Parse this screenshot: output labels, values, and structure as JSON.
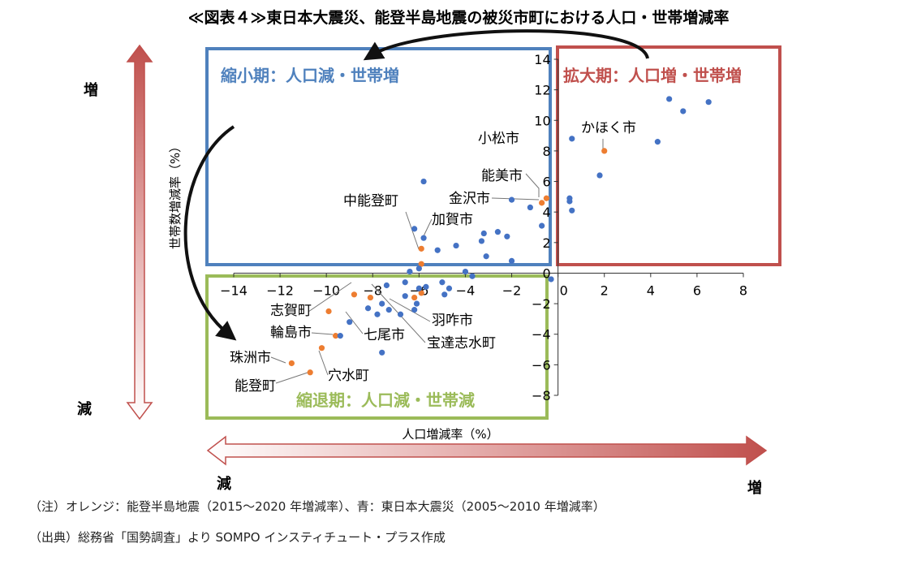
{
  "chart_data": {
    "type": "scatter",
    "title": "≪図表４≫東日本大震災、能登半島地震の被災市町における人口・世帯増減率",
    "xlabel": "人口増減率（%）",
    "ylabel": "世帯数増減率（%）",
    "xlim": [
      -14,
      8
    ],
    "ylim": [
      -8,
      14
    ],
    "x_ticks": [
      "−14",
      "−12",
      "−10",
      "−8",
      "−6",
      "−4",
      "−2",
      "0",
      "2",
      "4",
      "6",
      "8"
    ],
    "y_ticks": [
      "−8",
      "−6",
      "−4",
      "−2",
      "0",
      "2",
      "4",
      "6",
      "8",
      "10",
      "12",
      "14"
    ],
    "grid": false,
    "series": [
      {
        "color": "#ed7d31",
        "points": [
          {
            "x": 2.0,
            "y": 8.0
          },
          {
            "x": -0.7,
            "y": 4.6
          },
          {
            "x": -0.5,
            "y": 4.9
          },
          {
            "x": -5.9,
            "y": 1.6
          },
          {
            "x": -5.9,
            "y": 0.6
          },
          {
            "x": -8.8,
            "y": -1.4
          },
          {
            "x": -8.1,
            "y": -1.6
          },
          {
            "x": -6.2,
            "y": -1.6
          },
          {
            "x": -5.9,
            "y": -1.3
          },
          {
            "x": -9.9,
            "y": -2.5
          },
          {
            "x": -9.6,
            "y": -4.1
          },
          {
            "x": -10.2,
            "y": -4.9
          },
          {
            "x": -11.5,
            "y": -5.9
          },
          {
            "x": -10.7,
            "y": -6.5
          }
        ]
      },
      {
        "color": "#4472c4",
        "points": [
          {
            "x": 4.8,
            "y": 11.4
          },
          {
            "x": 6.5,
            "y": 11.2
          },
          {
            "x": 5.4,
            "y": 10.6
          },
          {
            "x": 4.3,
            "y": 8.6
          },
          {
            "x": 0.6,
            "y": 8.8
          },
          {
            "x": 1.8,
            "y": 6.4
          },
          {
            "x": 0.5,
            "y": 4.9
          },
          {
            "x": 0.5,
            "y": 4.7
          },
          {
            "x": 0.6,
            "y": 4.1
          },
          {
            "x": -5.8,
            "y": 6.0
          },
          {
            "x": -2.0,
            "y": 4.8
          },
          {
            "x": -1.2,
            "y": 4.3
          },
          {
            "x": -0.7,
            "y": 3.1
          },
          {
            "x": -6.2,
            "y": 2.9
          },
          {
            "x": -3.2,
            "y": 2.6
          },
          {
            "x": -2.6,
            "y": 2.7
          },
          {
            "x": -2.2,
            "y": 2.4
          },
          {
            "x": -3.3,
            "y": 2.1
          },
          {
            "x": -4.4,
            "y": 1.8
          },
          {
            "x": -5.8,
            "y": 2.3
          },
          {
            "x": -5.2,
            "y": 1.5
          },
          {
            "x": -3.1,
            "y": 1.1
          },
          {
            "x": -2.0,
            "y": 0.8
          },
          {
            "x": -6.0,
            "y": 0.3
          },
          {
            "x": -6.4,
            "y": 0.1
          },
          {
            "x": -3.7,
            "y": -0.2
          },
          {
            "x": -4.0,
            "y": 0.1
          },
          {
            "x": -6.6,
            "y": -0.6
          },
          {
            "x": -7.4,
            "y": -0.8
          },
          {
            "x": -4.7,
            "y": -1.0
          },
          {
            "x": -5.7,
            "y": -0.9
          },
          {
            "x": -5.0,
            "y": -0.6
          },
          {
            "x": -6.0,
            "y": -1.0
          },
          {
            "x": -6.6,
            "y": -1.5
          },
          {
            "x": -6.1,
            "y": -2.0
          },
          {
            "x": -6.2,
            "y": -2.4
          },
          {
            "x": -7.6,
            "y": -2.0
          },
          {
            "x": -7.3,
            "y": -2.4
          },
          {
            "x": -8.2,
            "y": -2.3
          },
          {
            "x": -6.8,
            "y": -2.7
          },
          {
            "x": -7.8,
            "y": -2.7
          },
          {
            "x": -9.0,
            "y": -3.2
          },
          {
            "x": -9.4,
            "y": -4.1
          },
          {
            "x": -7.6,
            "y": -5.2
          },
          {
            "x": -4.9,
            "y": -1.4
          },
          {
            "x": -0.3,
            "y": -0.4
          }
        ]
      }
    ],
    "annotations": {
      "labels": [
        {
          "id": "komatsu",
          "text": "小松市"
        },
        {
          "id": "kahoku",
          "text": "かほく市"
        },
        {
          "id": "nomi",
          "text": "能美市"
        },
        {
          "id": "kanazawa",
          "text": "金沢市"
        },
        {
          "id": "nakanoto",
          "text": "中能登町"
        },
        {
          "id": "kaga",
          "text": "加賀市"
        },
        {
          "id": "shika",
          "text": "志賀町"
        },
        {
          "id": "hakui",
          "text": "羽咋市"
        },
        {
          "id": "wajima",
          "text": "輪島市"
        },
        {
          "id": "nanao",
          "text": "七尾市"
        },
        {
          "id": "hodatsushimizu",
          "text": "宝達志水町"
        },
        {
          "id": "suzu",
          "text": "珠洲市"
        },
        {
          "id": "anamizu",
          "text": "穴水町"
        },
        {
          "id": "noto",
          "text": "能登町"
        }
      ],
      "quadrants": [
        {
          "id": "shukusho",
          "text": "縮小期：人口減・世帯増",
          "color": "#4f81bd"
        },
        {
          "id": "kakudai",
          "text": "拡大期：人口増・世帯増",
          "color": "#c0504d"
        },
        {
          "id": "shukutai",
          "text": "縮退期：人口減・世帯減",
          "color": "#9bbb59"
        }
      ],
      "axis_arrows": {
        "v_up": "増",
        "v_down": "減",
        "h_left": "減",
        "h_right": "増"
      }
    }
  },
  "notes": {
    "note": "（注）オレンジ：能登半島地震（2015～2020 年増減率）、青：東日本大震災（2005～2010 年増減率）",
    "source": "（出典）総務省「国勢調査」より SOMPO インスティチュート・プラス作成"
  }
}
